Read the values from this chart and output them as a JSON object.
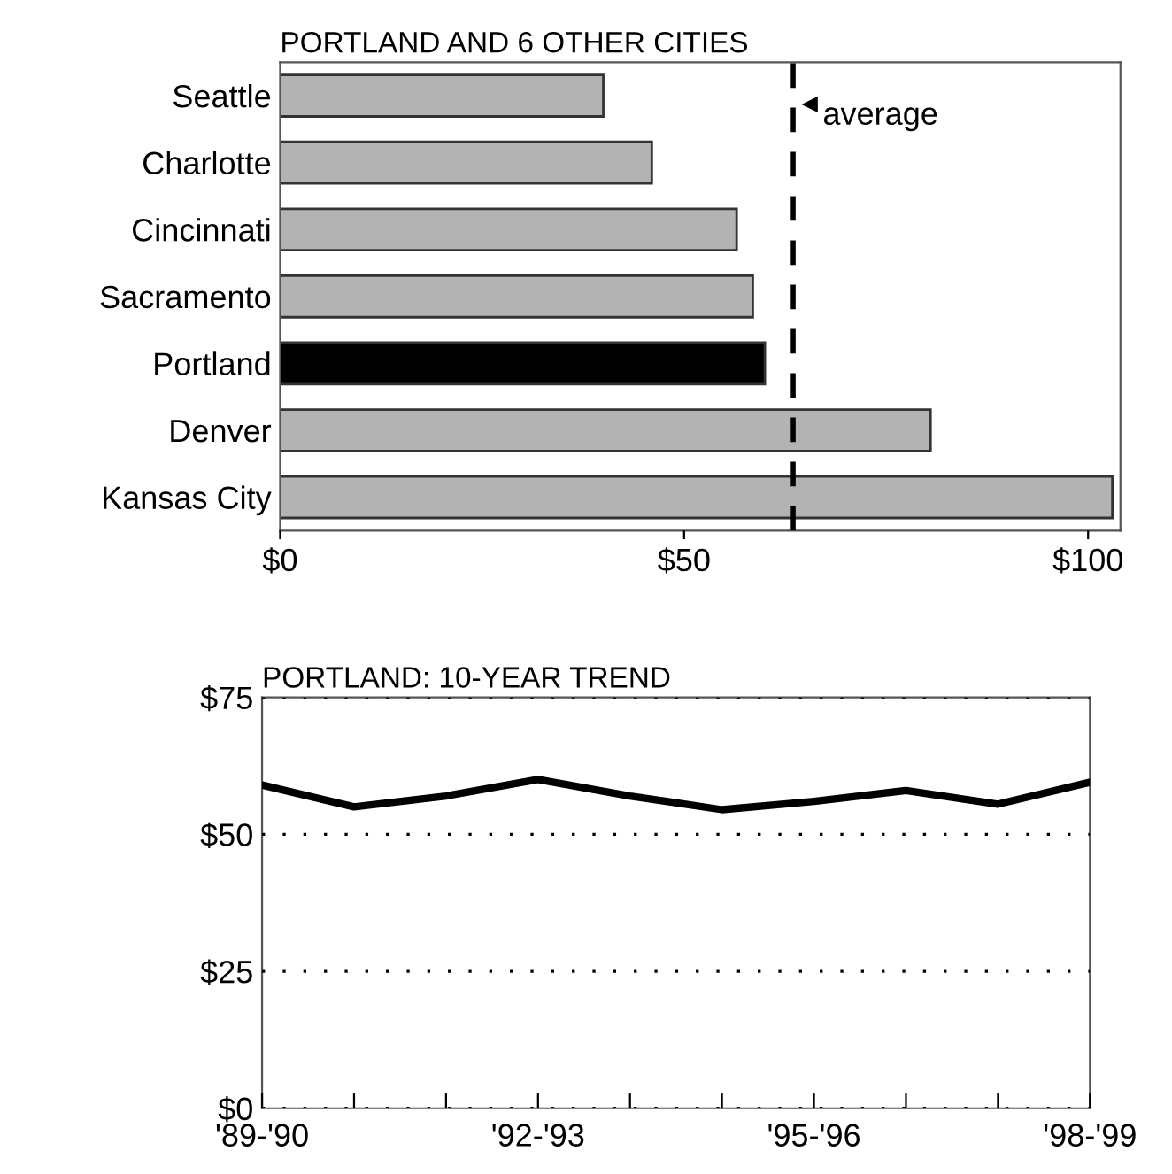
{
  "chart_data": [
    {
      "type": "bar",
      "orientation": "horizontal",
      "title": "PORTLAND AND 6 OTHER CITIES",
      "categories": [
        "Seattle",
        "Charlotte",
        "Cincinnati",
        "Sacramento",
        "Portland",
        "Denver",
        "Kansas City"
      ],
      "values": [
        40,
        46,
        56.5,
        58.5,
        60,
        80.5,
        103
      ],
      "colors": [
        "#b3b3b3",
        "#b3b3b3",
        "#b3b3b3",
        "#b3b3b3",
        "#000000",
        "#b3b3b3",
        "#b3b3b3"
      ],
      "xlim": [
        0,
        104
      ],
      "xticks": [
        {
          "value": 0,
          "label": "$0"
        },
        {
          "value": 50,
          "label": "$50"
        },
        {
          "value": 100,
          "label": "$100"
        }
      ],
      "ref_lines": [
        {
          "axis": "x",
          "value": 63.5,
          "label": "average",
          "line_style": "dashed",
          "color": "#000000"
        }
      ]
    },
    {
      "type": "line",
      "title": "PORTLAND: 10-YEAR TREND",
      "categories": [
        "'89-'90",
        null,
        null,
        "'92-'93",
        null,
        null,
        "'95-'96",
        null,
        null,
        "'98-'99"
      ],
      "series": [
        {
          "color": "#000000",
          "values": [
            59,
            55,
            57,
            60,
            57,
            54.5,
            56,
            58,
            55.5,
            59.5
          ]
        }
      ],
      "ylim": [
        0,
        75
      ],
      "yticks": [
        {
          "value": 0,
          "label": "$0"
        },
        {
          "value": 25,
          "label": "$25"
        },
        {
          "value": 50,
          "label": "$50"
        },
        {
          "value": 75,
          "label": "$75"
        }
      ],
      "grid": "y",
      "line_style": "solid",
      "marker": "none"
    }
  ]
}
